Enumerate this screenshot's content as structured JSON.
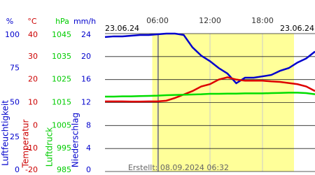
{
  "chart_data": {
    "type": "line",
    "axes": [
      {
        "title": "Luftfeuchtigkeit",
        "unit": "%",
        "color": "#0000cc",
        "ylim": [
          0,
          100
        ],
        "yticks": [
          0,
          25,
          50,
          75,
          100
        ]
      },
      {
        "title": "Temperatur",
        "unit": "°C",
        "color": "#cc0000",
        "ylim": [
          -20,
          40
        ],
        "yticks": [
          -20,
          -10,
          0,
          10,
          20,
          30,
          40
        ]
      },
      {
        "title": "Luftdruck",
        "unit": "hPa",
        "color": "#00cc00",
        "ylim": [
          985,
          1045
        ],
        "yticks": [
          985,
          995,
          1005,
          1015,
          1025,
          1035,
          1045
        ]
      },
      {
        "title": "Niederschlag",
        "unit": "mm/h",
        "color": "#0000cc",
        "ylim": [
          0,
          24
        ],
        "yticks": [
          0,
          4,
          8,
          12,
          16,
          20,
          24
        ]
      }
    ],
    "x": [
      0,
      1,
      2,
      3,
      4,
      5,
      6,
      7,
      8,
      9,
      10,
      11,
      12,
      13,
      14,
      15,
      16,
      17,
      18,
      19,
      20,
      21,
      22,
      23,
      24
    ],
    "xlim": [
      0,
      24
    ],
    "xticks": [
      {
        "value": 6,
        "label": "06:00"
      },
      {
        "value": 12,
        "label": "12:00"
      },
      {
        "value": 18,
        "label": "18:00"
      }
    ],
    "daylight": [
      5.4,
      21.6
    ],
    "date_start": "23.06.24",
    "date_end": "23.06.24",
    "note": "Erstellt: 08.09.2024 06:32",
    "series": [
      {
        "axis": 0,
        "color": "#0000cc",
        "values": [
          97.5,
          98,
          98,
          98.5,
          99,
          99,
          99.5,
          100,
          100,
          99,
          90,
          84,
          80,
          75,
          71,
          64,
          68,
          68,
          69,
          70,
          73,
          75,
          79,
          82,
          87
        ]
      },
      {
        "axis": 1,
        "color": "#dd0000",
        "values": [
          10.5,
          10.5,
          10.5,
          10.4,
          10.4,
          10.5,
          10.5,
          10.8,
          12,
          13.5,
          15,
          17,
          18,
          20,
          21,
          20,
          19.5,
          19.5,
          19.5,
          19.2,
          19,
          18.5,
          18,
          17,
          15
        ]
      },
      {
        "axis": 2,
        "color": "#00dd00",
        "values": [
          1017.6,
          1017.6,
          1017.7,
          1017.7,
          1017.8,
          1017.9,
          1018,
          1018.2,
          1018.3,
          1018.4,
          1018.5,
          1018.6,
          1018.8,
          1018.8,
          1018.9,
          1018.9,
          1019,
          1019,
          1019,
          1019.1,
          1019.2,
          1019.3,
          1019.3,
          1019.1,
          1018.6
        ]
      }
    ]
  }
}
